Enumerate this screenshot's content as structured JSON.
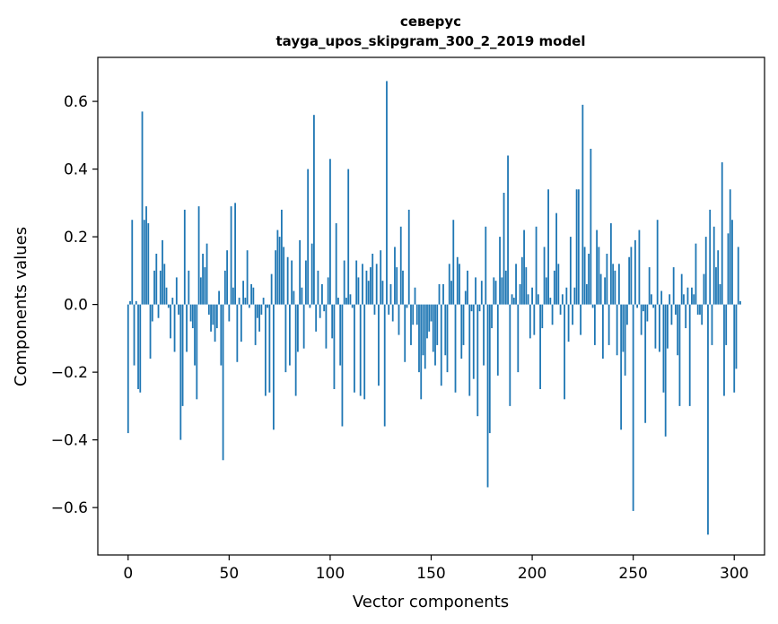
{
  "chart_data": {
    "type": "bar",
    "title": "северус",
    "subtitle": "tayga_upos_skipgram_300_2_2019 model",
    "xlabel": "Vector components",
    "ylabel": "Components values",
    "xlim": [
      -15,
      315
    ],
    "ylim": [
      -0.74,
      0.73
    ],
    "xticks": [
      0,
      50,
      100,
      150,
      200,
      250,
      300
    ],
    "yticks": [
      -0.6,
      -0.4,
      -0.2,
      0.0,
      0.2,
      0.4,
      0.6
    ],
    "ytick_labels": [
      "−0.6",
      "−0.4",
      "−0.2",
      "0.0",
      "0.2",
      "0.4",
      "0.6"
    ],
    "color": "#1f77b4",
    "values": [
      -0.38,
      0.01,
      0.25,
      -0.18,
      0.01,
      -0.25,
      -0.26,
      0.57,
      0.25,
      0.29,
      0.24,
      -0.16,
      -0.05,
      0.1,
      0.15,
      -0.04,
      0.1,
      0.19,
      0.12,
      0.05,
      -0.01,
      -0.1,
      0.02,
      -0.14,
      0.08,
      -0.03,
      -0.4,
      -0.3,
      0.28,
      -0.14,
      0.1,
      -0.05,
      -0.07,
      -0.18,
      -0.28,
      0.29,
      0.08,
      0.15,
      0.11,
      0.18,
      -0.03,
      -0.08,
      -0.06,
      -0.11,
      -0.07,
      0.04,
      -0.18,
      -0.46,
      0.1,
      0.16,
      -0.05,
      0.29,
      0.05,
      0.3,
      -0.17,
      0.02,
      -0.11,
      0.07,
      0.02,
      0.16,
      -0.01,
      0.06,
      0.05,
      -0.12,
      -0.04,
      -0.08,
      -0.03,
      0.02,
      -0.27,
      -0.01,
      -0.26,
      0.09,
      -0.37,
      0.16,
      0.22,
      0.2,
      0.28,
      0.17,
      -0.2,
      0.14,
      -0.18,
      0.13,
      0.04,
      -0.27,
      -0.14,
      0.19,
      0.05,
      -0.13,
      0.13,
      0.4,
      -0.01,
      0.18,
      0.56,
      -0.08,
      0.1,
      -0.04,
      0.06,
      -0.02,
      -0.13,
      0.08,
      0.43,
      -0.1,
      -0.25,
      0.24,
      0.02,
      -0.18,
      -0.36,
      0.13,
      0.02,
      0.4,
      0.03,
      -0.01,
      -0.26,
      0.13,
      0.08,
      -0.27,
      0.12,
      -0.28,
      0.1,
      0.07,
      0.11,
      0.15,
      -0.03,
      0.12,
      -0.24,
      0.16,
      0.07,
      -0.36,
      0.66,
      -0.03,
      0.06,
      -0.05,
      0.17,
      0.11,
      -0.09,
      0.23,
      0.1,
      -0.17,
      -0.01,
      0.28,
      -0.12,
      -0.06,
      0.05,
      -0.06,
      -0.2,
      -0.28,
      -0.15,
      -0.19,
      -0.1,
      -0.08,
      -0.05,
      -0.14,
      -0.18,
      -0.12,
      0.06,
      -0.24,
      0.06,
      -0.15,
      -0.2,
      0.12,
      0.07,
      0.25,
      -0.26,
      0.14,
      0.12,
      -0.16,
      -0.12,
      0.04,
      0.1,
      -0.27,
      -0.02,
      -0.22,
      0.08,
      -0.33,
      -0.02,
      0.07,
      -0.18,
      0.23,
      -0.54,
      -0.38,
      -0.07,
      0.08,
      0.07,
      -0.21,
      0.2,
      0.08,
      0.33,
      0.1,
      0.44,
      -0.3,
      0.03,
      0.02,
      0.12,
      -0.2,
      0.06,
      0.14,
      0.22,
      0.11,
      0.03,
      -0.1,
      0.05,
      -0.09,
      0.23,
      0.03,
      -0.25,
      -0.07,
      0.17,
      0.08,
      0.34,
      0.02,
      -0.06,
      0.1,
      0.27,
      0.12,
      -0.03,
      0.03,
      -0.28,
      0.05,
      -0.11,
      0.2,
      -0.06,
      0.05,
      0.34,
      0.34,
      -0.09,
      0.59,
      0.17,
      0.06,
      0.15,
      0.46,
      -0.01,
      -0.12,
      0.22,
      0.17,
      0.09,
      -0.16,
      0.08,
      0.15,
      -0.12,
      0.24,
      0.12,
      0.1,
      -0.15,
      0.12,
      -0.37,
      -0.14,
      -0.21,
      -0.06,
      0.14,
      0.17,
      -0.61,
      0.19,
      -0.01,
      0.22,
      -0.09,
      -0.02,
      -0.35,
      -0.05,
      0.11,
      0.03,
      -0.01,
      -0.13,
      0.25,
      -0.14,
      0.04,
      -0.26,
      -0.39,
      -0.13,
      0.03,
      -0.06,
      0.11,
      -0.03,
      -0.15,
      -0.3,
      0.09,
      0.03,
      -0.07,
      0.05,
      -0.3,
      0.05,
      0.03,
      0.18,
      -0.03,
      -0.03,
      -0.06,
      0.09,
      0.2,
      -0.68,
      0.28,
      -0.12,
      0.23,
      0.11,
      0.16,
      0.06,
      0.42,
      -0.27,
      -0.12,
      0.21,
      0.34,
      0.25,
      -0.26,
      -0.19,
      0.17,
      0.01
    ]
  }
}
